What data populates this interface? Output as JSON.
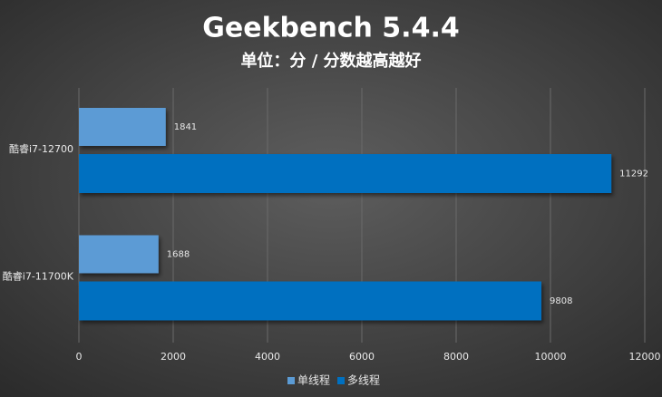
{
  "chart_data": {
    "type": "bar",
    "orientation": "horizontal",
    "title": "Geekbench 5.4.4",
    "subtitle": "单位：分 / 分数越高越好",
    "categories": [
      "酷睿i7-12700",
      "酷睿i7-11700K"
    ],
    "series": [
      {
        "name": "单线程",
        "color": "#5b9bd5",
        "values": [
          1841,
          1688
        ]
      },
      {
        "name": "多线程",
        "color": "#0070c0",
        "values": [
          11292,
          9808
        ]
      }
    ],
    "xlim": [
      0,
      12000
    ],
    "xticks": [
      0,
      2000,
      4000,
      6000,
      8000,
      10000,
      12000
    ],
    "grid": true,
    "legend": "bottom"
  }
}
